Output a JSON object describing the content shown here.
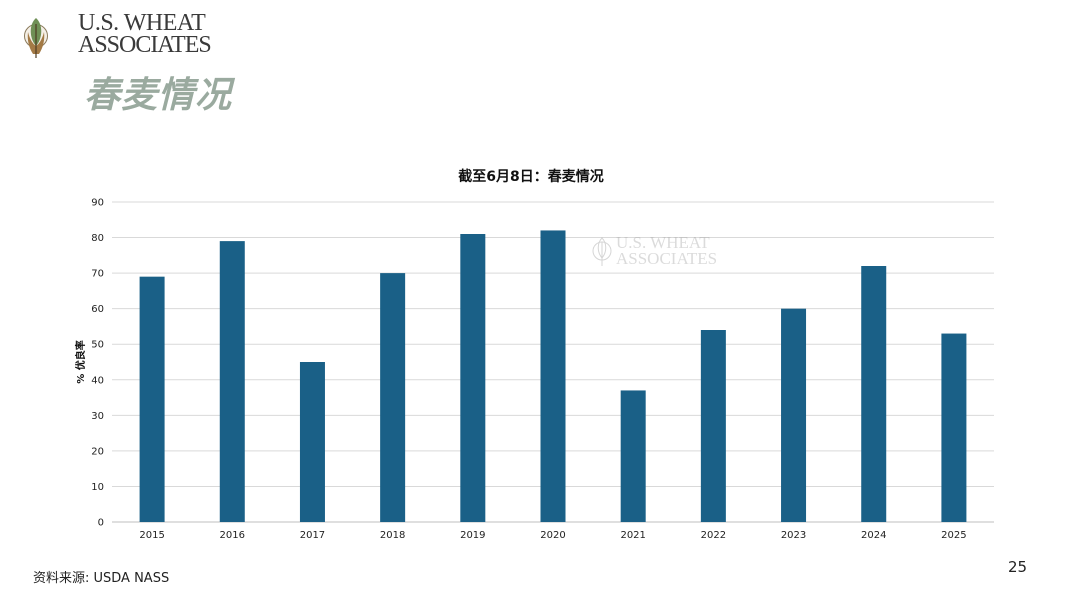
{
  "header": {
    "logo_line1": "U.S. WHEAT",
    "logo_line2": "ASSOCIATES",
    "title": "春麦情况"
  },
  "watermark": {
    "line1": "U.S. WHEAT",
    "line2": "ASSOCIATES"
  },
  "footer": {
    "source": "资料来源: USDA NASS",
    "page_number": "25"
  },
  "colors": {
    "bar": "#1a6087",
    "grid": "#d9d9d9",
    "title_green": "#9aaa9f"
  },
  "chart_data": {
    "type": "bar",
    "title": "截至6月8日：春麦情况",
    "xlabel": "",
    "ylabel": "% 优良率",
    "categories": [
      "2015",
      "2016",
      "2017",
      "2018",
      "2019",
      "2020",
      "2021",
      "2022",
      "2023",
      "2024",
      "2025"
    ],
    "values": [
      69,
      79,
      45,
      70,
      81,
      82,
      37,
      54,
      60,
      72,
      53
    ],
    "ylim": [
      0,
      90
    ],
    "yticks": [
      0,
      10,
      20,
      30,
      40,
      50,
      60,
      70,
      80,
      90
    ],
    "grid": true,
    "legend": "none"
  }
}
